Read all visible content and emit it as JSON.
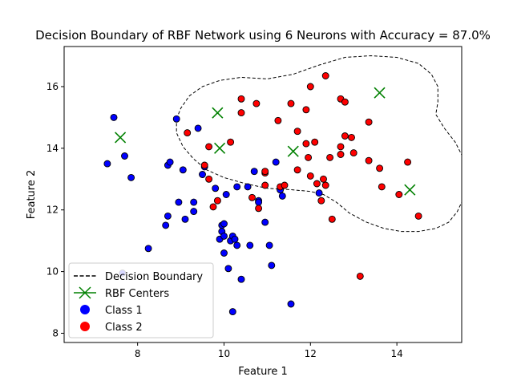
{
  "chart_data": {
    "type": "scatter",
    "title": "Decision Boundary of RBF Network using 6 Neurons with Accuracy = 87.0%",
    "xlabel": "Feature 1",
    "ylabel": "Feature 2",
    "xlim": [
      6.3,
      15.5
    ],
    "ylim": [
      7.7,
      17.3
    ],
    "xticks": [
      8,
      10,
      12,
      14
    ],
    "yticks": [
      8,
      10,
      12,
      14,
      16
    ],
    "grid": false,
    "legend_position": "lower-left",
    "legend": [
      {
        "label": "Decision Boundary",
        "kind": "dashed-line",
        "color": "#000000"
      },
      {
        "label": "RBF Centers",
        "kind": "x-marker",
        "color": "#008000"
      },
      {
        "label": "Class 1",
        "kind": "circle",
        "color": "#0000ff"
      },
      {
        "label": "Class 2",
        "kind": "circle",
        "color": "#ff0000"
      }
    ],
    "series": [
      {
        "name": "Class 1",
        "color": "#0000ff",
        "points": [
          [
            7.3,
            13.5
          ],
          [
            7.45,
            15.0
          ],
          [
            7.7,
            13.75
          ],
          [
            7.85,
            13.05
          ],
          [
            7.65,
            9.95
          ],
          [
            8.25,
            10.75
          ],
          [
            8.65,
            11.5
          ],
          [
            8.7,
            11.8
          ],
          [
            8.7,
            13.45
          ],
          [
            8.75,
            13.55
          ],
          [
            8.9,
            14.95
          ],
          [
            8.95,
            12.25
          ],
          [
            9.05,
            13.3
          ],
          [
            9.1,
            11.7
          ],
          [
            9.3,
            12.25
          ],
          [
            9.3,
            11.95
          ],
          [
            9.4,
            14.65
          ],
          [
            9.5,
            13.15
          ],
          [
            9.55,
            13.4
          ],
          [
            9.8,
            12.7
          ],
          [
            9.95,
            11.5
          ],
          [
            9.95,
            11.3
          ],
          [
            9.9,
            11.05
          ],
          [
            10.0,
            11.55
          ],
          [
            10.0,
            11.15
          ],
          [
            10.0,
            10.6
          ],
          [
            10.05,
            12.5
          ],
          [
            10.1,
            10.1
          ],
          [
            10.15,
            11.0
          ],
          [
            10.2,
            11.15
          ],
          [
            10.25,
            11.05
          ],
          [
            10.3,
            10.85
          ],
          [
            10.3,
            12.75
          ],
          [
            10.2,
            8.7
          ],
          [
            10.4,
            9.75
          ],
          [
            10.55,
            12.75
          ],
          [
            10.6,
            10.85
          ],
          [
            10.7,
            13.25
          ],
          [
            10.8,
            12.3
          ],
          [
            10.8,
            12.25
          ],
          [
            10.95,
            11.6
          ],
          [
            11.05,
            10.85
          ],
          [
            11.1,
            10.2
          ],
          [
            11.2,
            13.55
          ],
          [
            11.3,
            12.65
          ],
          [
            11.35,
            12.45
          ],
          [
            11.55,
            8.95
          ],
          [
            12.2,
            12.55
          ]
        ]
      },
      {
        "name": "Class 2",
        "color": "#ff0000",
        "points": [
          [
            9.15,
            14.5
          ],
          [
            9.55,
            13.45
          ],
          [
            9.65,
            14.05
          ],
          [
            9.65,
            13.0
          ],
          [
            9.75,
            12.1
          ],
          [
            9.85,
            12.3
          ],
          [
            10.15,
            14.2
          ],
          [
            10.4,
            15.6
          ],
          [
            10.4,
            15.15
          ],
          [
            10.65,
            12.4
          ],
          [
            10.75,
            15.45
          ],
          [
            10.8,
            12.05
          ],
          [
            10.95,
            13.2
          ],
          [
            10.95,
            12.8
          ],
          [
            10.95,
            13.25
          ],
          [
            11.25,
            14.9
          ],
          [
            11.3,
            12.75
          ],
          [
            11.4,
            12.8
          ],
          [
            11.55,
            15.45
          ],
          [
            11.7,
            14.55
          ],
          [
            11.7,
            13.3
          ],
          [
            11.9,
            15.25
          ],
          [
            11.9,
            14.15
          ],
          [
            11.95,
            13.7
          ],
          [
            12.0,
            13.1
          ],
          [
            12.0,
            16.0
          ],
          [
            12.1,
            14.2
          ],
          [
            12.15,
            12.85
          ],
          [
            12.25,
            12.3
          ],
          [
            12.3,
            13.0
          ],
          [
            12.35,
            12.8
          ],
          [
            12.35,
            16.35
          ],
          [
            12.45,
            13.7
          ],
          [
            12.5,
            11.7
          ],
          [
            12.7,
            15.6
          ],
          [
            12.7,
            14.05
          ],
          [
            12.7,
            13.8
          ],
          [
            12.8,
            15.5
          ],
          [
            12.8,
            14.4
          ],
          [
            12.95,
            14.35
          ],
          [
            13.0,
            13.85
          ],
          [
            13.15,
            9.85
          ],
          [
            13.35,
            14.85
          ],
          [
            13.35,
            13.6
          ],
          [
            13.6,
            13.35
          ],
          [
            13.65,
            12.75
          ],
          [
            14.05,
            12.5
          ],
          [
            14.25,
            13.55
          ],
          [
            14.5,
            11.8
          ]
        ]
      }
    ],
    "rbf_centers": [
      [
        7.6,
        14.35
      ],
      [
        9.85,
        15.15
      ],
      [
        9.9,
        14.0
      ],
      [
        11.6,
        13.9
      ],
      [
        13.6,
        15.8
      ],
      [
        14.3,
        12.65
      ]
    ],
    "decision_boundary": [
      [
        8.9,
        14.95
      ],
      [
        9.0,
        15.3
      ],
      [
        9.2,
        15.7
      ],
      [
        9.5,
        16.0
      ],
      [
        9.9,
        16.2
      ],
      [
        10.4,
        16.3
      ],
      [
        11.0,
        16.25
      ],
      [
        11.6,
        16.4
      ],
      [
        12.2,
        16.7
      ],
      [
        12.8,
        16.95
      ],
      [
        13.4,
        17.0
      ],
      [
        14.0,
        16.95
      ],
      [
        14.5,
        16.75
      ],
      [
        14.8,
        16.4
      ],
      [
        14.95,
        16.0
      ],
      [
        14.95,
        15.5
      ],
      [
        14.9,
        15.1
      ],
      [
        15.1,
        14.65
      ],
      [
        15.35,
        14.2
      ],
      [
        15.55,
        13.65
      ],
      [
        15.6,
        13.0
      ],
      [
        15.55,
        12.4
      ],
      [
        15.4,
        11.95
      ],
      [
        15.2,
        11.6
      ],
      [
        14.9,
        11.4
      ],
      [
        14.5,
        11.3
      ],
      [
        14.1,
        11.3
      ],
      [
        13.7,
        11.4
      ],
      [
        13.3,
        11.6
      ],
      [
        12.9,
        11.9
      ],
      [
        12.6,
        12.25
      ],
      [
        12.3,
        12.5
      ],
      [
        12.0,
        12.6
      ],
      [
        11.6,
        12.65
      ],
      [
        11.0,
        12.7
      ],
      [
        10.5,
        12.85
      ],
      [
        10.0,
        13.05
      ],
      [
        9.6,
        13.3
      ],
      [
        9.3,
        13.65
      ],
      [
        9.05,
        14.05
      ],
      [
        8.9,
        14.5
      ],
      [
        8.9,
        14.95
      ]
    ]
  }
}
